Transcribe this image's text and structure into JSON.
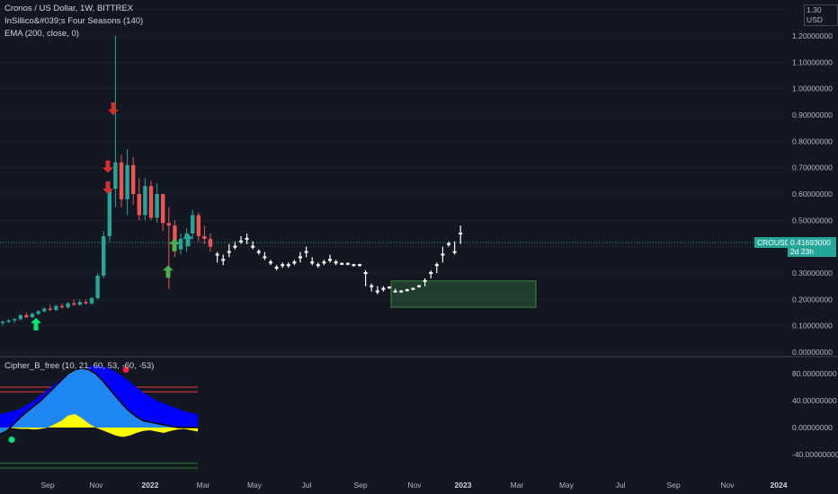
{
  "colors": {
    "background": "#131722",
    "up": "#26a69a",
    "down": "#ef5350",
    "gap_candle": "#ffffff",
    "accumulation_zone": "#4caf50",
    "wave_dark": "#0000ff",
    "wave_light": "#2196f3",
    "money_flow": "#ffff00",
    "signal_green": "#00e676",
    "signal_red": "#ff1744",
    "band_red": "#e53935",
    "band_green": "#2e7d32"
  },
  "header": {
    "symbol_line": "Cronos / US Dollar, 1W, BITTREX",
    "indicator1": "InSillico&#039;s Four Seasons (140)",
    "indicator2": "EMA (200, close, 0)"
  },
  "lower_pane": {
    "title": "Cipher_B_free (10, 21, 60, 53, -60, -53)"
  },
  "price_axis": {
    "currency": "USD",
    "top_label": "1.30",
    "labels": [
      "1.20000000",
      "1.10000000",
      "1.00000000",
      "0.90000000",
      "0.80000000",
      "0.70000000",
      "0.60000000",
      "0.50000000",
      "0.30000000",
      "0.20000000",
      "0.10000000",
      "0.00000000"
    ],
    "last_price": "0.41693000",
    "countdown": "2d 23h",
    "symbol_tag": "CROUSD"
  },
  "osc_axis": {
    "labels": [
      "80.00000000",
      "40.00000000",
      "0.00000000",
      "-40.00000000"
    ]
  },
  "time_axis": {
    "labels": [
      "Sep",
      "Nov",
      "2022",
      "Mar",
      "May",
      "Jul",
      "Sep",
      "Nov",
      "2023",
      "Mar",
      "May",
      "Jul",
      "Sep",
      "Nov",
      "2024"
    ]
  },
  "chart_data": {
    "type": "candlestick",
    "title": "Cronos / US Dollar, 1W, BITTREX",
    "y_unit": "USD",
    "ylim": [
      0,
      1.32
    ],
    "last_price": 0.41693,
    "x_axis": "weekly, Jul 2021 – 2024",
    "candles_main": [
      {
        "o": 0.11,
        "h": 0.12,
        "l": 0.1,
        "c": 0.115
      },
      {
        "o": 0.115,
        "h": 0.125,
        "l": 0.11,
        "c": 0.12
      },
      {
        "o": 0.12,
        "h": 0.13,
        "l": 0.11,
        "c": 0.125
      },
      {
        "o": 0.125,
        "h": 0.145,
        "l": 0.12,
        "c": 0.14
      },
      {
        "o": 0.14,
        "h": 0.15,
        "l": 0.13,
        "c": 0.132
      },
      {
        "o": 0.132,
        "h": 0.15,
        "l": 0.13,
        "c": 0.145
      },
      {
        "o": 0.145,
        "h": 0.16,
        "l": 0.14,
        "c": 0.155
      },
      {
        "o": 0.155,
        "h": 0.17,
        "l": 0.15,
        "c": 0.165
      },
      {
        "o": 0.165,
        "h": 0.18,
        "l": 0.155,
        "c": 0.16
      },
      {
        "o": 0.16,
        "h": 0.18,
        "l": 0.155,
        "c": 0.175
      },
      {
        "o": 0.175,
        "h": 0.185,
        "l": 0.165,
        "c": 0.17
      },
      {
        "o": 0.17,
        "h": 0.19,
        "l": 0.165,
        "c": 0.185
      },
      {
        "o": 0.185,
        "h": 0.2,
        "l": 0.175,
        "c": 0.18
      },
      {
        "o": 0.18,
        "h": 0.2,
        "l": 0.175,
        "c": 0.19
      },
      {
        "o": 0.19,
        "h": 0.2,
        "l": 0.18,
        "c": 0.185
      },
      {
        "o": 0.185,
        "h": 0.21,
        "l": 0.18,
        "c": 0.205
      },
      {
        "o": 0.205,
        "h": 0.3,
        "l": 0.2,
        "c": 0.29
      },
      {
        "o": 0.29,
        "h": 0.46,
        "l": 0.28,
        "c": 0.44
      },
      {
        "o": 0.44,
        "h": 0.65,
        "l": 0.42,
        "c": 0.62
      },
      {
        "o": 0.62,
        "h": 1.2,
        "l": 0.55,
        "c": 0.72
      },
      {
        "o": 0.72,
        "h": 0.75,
        "l": 0.55,
        "c": 0.58
      },
      {
        "o": 0.58,
        "h": 0.77,
        "l": 0.52,
        "c": 0.71
      },
      {
        "o": 0.71,
        "h": 0.74,
        "l": 0.56,
        "c": 0.6
      },
      {
        "o": 0.6,
        "h": 0.66,
        "l": 0.5,
        "c": 0.52
      },
      {
        "o": 0.52,
        "h": 0.66,
        "l": 0.5,
        "c": 0.63
      },
      {
        "o": 0.63,
        "h": 0.65,
        "l": 0.5,
        "c": 0.51
      },
      {
        "o": 0.51,
        "h": 0.64,
        "l": 0.49,
        "c": 0.6
      },
      {
        "o": 0.6,
        "h": 0.6,
        "l": 0.46,
        "c": 0.49
      },
      {
        "o": 0.49,
        "h": 0.55,
        "l": 0.24,
        "c": 0.48
      },
      {
        "o": 0.48,
        "h": 0.5,
        "l": 0.36,
        "c": 0.39
      },
      {
        "o": 0.39,
        "h": 0.45,
        "l": 0.37,
        "c": 0.43
      },
      {
        "o": 0.43,
        "h": 0.47,
        "l": 0.38,
        "c": 0.45
      },
      {
        "o": 0.45,
        "h": 0.54,
        "l": 0.43,
        "c": 0.52
      },
      {
        "o": 0.52,
        "h": 0.53,
        "l": 0.42,
        "c": 0.44
      },
      {
        "o": 0.44,
        "h": 0.48,
        "l": 0.41,
        "c": 0.43
      },
      {
        "o": 0.43,
        "h": 0.45,
        "l": 0.38,
        "c": 0.4
      }
    ],
    "gap_bars_note": "white weekly bars after Mar 2022 drawn thin with gaps",
    "gap_bars": [
      {
        "x": 0.37,
        "l": 0.34,
        "h": 0.38
      },
      {
        "x": 0.35,
        "l": 0.33,
        "h": 0.37
      },
      {
        "x": 0.38,
        "l": 0.36,
        "h": 0.41
      },
      {
        "x": 0.4,
        "l": 0.39,
        "h": 0.42
      },
      {
        "x": 0.42,
        "l": 0.41,
        "h": 0.44
      },
      {
        "x": 0.43,
        "l": 0.41,
        "h": 0.45
      },
      {
        "x": 0.4,
        "l": 0.39,
        "h": 0.42
      },
      {
        "x": 0.38,
        "l": 0.37,
        "h": 0.39
      },
      {
        "x": 0.36,
        "l": 0.35,
        "h": 0.38
      },
      {
        "x": 0.34,
        "l": 0.33,
        "h": 0.35
      },
      {
        "x": 0.32,
        "l": 0.31,
        "h": 0.33
      },
      {
        "x": 0.33,
        "l": 0.32,
        "h": 0.34
      },
      {
        "x": 0.33,
        "l": 0.32,
        "h": 0.34
      },
      {
        "x": 0.34,
        "l": 0.33,
        "h": 0.35
      },
      {
        "x": 0.36,
        "l": 0.34,
        "h": 0.38
      },
      {
        "x": 0.38,
        "l": 0.36,
        "h": 0.4
      },
      {
        "x": 0.34,
        "l": 0.33,
        "h": 0.36
      },
      {
        "x": 0.33,
        "l": 0.32,
        "h": 0.34
      },
      {
        "x": 0.34,
        "l": 0.33,
        "h": 0.35
      },
      {
        "x": 0.35,
        "l": 0.34,
        "h": 0.37
      },
      {
        "x": 0.34,
        "l": 0.33,
        "h": 0.35
      },
      {
        "x": 0.335,
        "l": 0.33,
        "h": 0.34
      },
      {
        "x": 0.335,
        "l": 0.33,
        "h": 0.34
      },
      {
        "x": 0.33,
        "l": 0.325,
        "h": 0.335
      },
      {
        "x": 0.33,
        "l": 0.325,
        "h": 0.335
      },
      {
        "x": 0.3,
        "l": 0.25,
        "h": 0.31
      },
      {
        "x": 0.25,
        "l": 0.23,
        "h": 0.26
      },
      {
        "x": 0.23,
        "l": 0.22,
        "h": 0.25
      },
      {
        "x": 0.24,
        "l": 0.23,
        "h": 0.25
      },
      {
        "x": 0.245,
        "l": 0.24,
        "h": 0.25
      },
      {
        "x": 0.23,
        "l": 0.225,
        "h": 0.24
      },
      {
        "x": 0.23,
        "l": 0.225,
        "h": 0.235
      },
      {
        "x": 0.235,
        "l": 0.23,
        "h": 0.24
      },
      {
        "x": 0.24,
        "l": 0.235,
        "h": 0.245
      },
      {
        "x": 0.25,
        "l": 0.245,
        "h": 0.255
      },
      {
        "x": 0.27,
        "l": 0.25,
        "h": 0.28
      },
      {
        "x": 0.3,
        "l": 0.28,
        "h": 0.31
      },
      {
        "x": 0.33,
        "l": 0.3,
        "h": 0.34
      },
      {
        "x": 0.37,
        "l": 0.34,
        "h": 0.4
      },
      {
        "x": 0.41,
        "l": 0.4,
        "h": 0.42
      },
      {
        "x": 0.38,
        "l": 0.37,
        "h": 0.42
      },
      {
        "x": 0.45,
        "l": 0.41,
        "h": 0.48
      }
    ],
    "signals_up_values": [
      0.13,
      0.33,
      0.43,
      0.45
    ],
    "signals_down_values": [
      0.9,
      0.68,
      0.6
    ],
    "accumulation_zone": {
      "y_low": 0.17,
      "y_high": 0.27
    },
    "oscillator": {
      "ylim": [
        -60,
        100
      ],
      "overbought_lines": [
        60,
        53
      ],
      "oversold_lines": [
        -60,
        -53
      ],
      "wave_dark": [
        20,
        22,
        25,
        28,
        34,
        40,
        48,
        56,
        64,
        72,
        78,
        84,
        88,
        90,
        92,
        91,
        88,
        82,
        76,
        68,
        60,
        52,
        46,
        40,
        36,
        32,
        28,
        24,
        22,
        20
      ],
      "wave_light": [
        -10,
        -5,
        5,
        15,
        24,
        32,
        40,
        50,
        60,
        70,
        80,
        86,
        88,
        86,
        80,
        70,
        58,
        46,
        34,
        24,
        16,
        10,
        8,
        6,
        4,
        2,
        0,
        0,
        0,
        0
      ],
      "money_flow": [
        0,
        0,
        -1,
        -2,
        -2,
        -3,
        -2,
        0,
        5,
        10,
        18,
        20,
        14,
        6,
        0,
        -4,
        -8,
        -12,
        -14,
        -12,
        -8,
        -5,
        -4,
        -6,
        -8,
        -5,
        -3,
        -2,
        -4,
        -6
      ]
    }
  }
}
